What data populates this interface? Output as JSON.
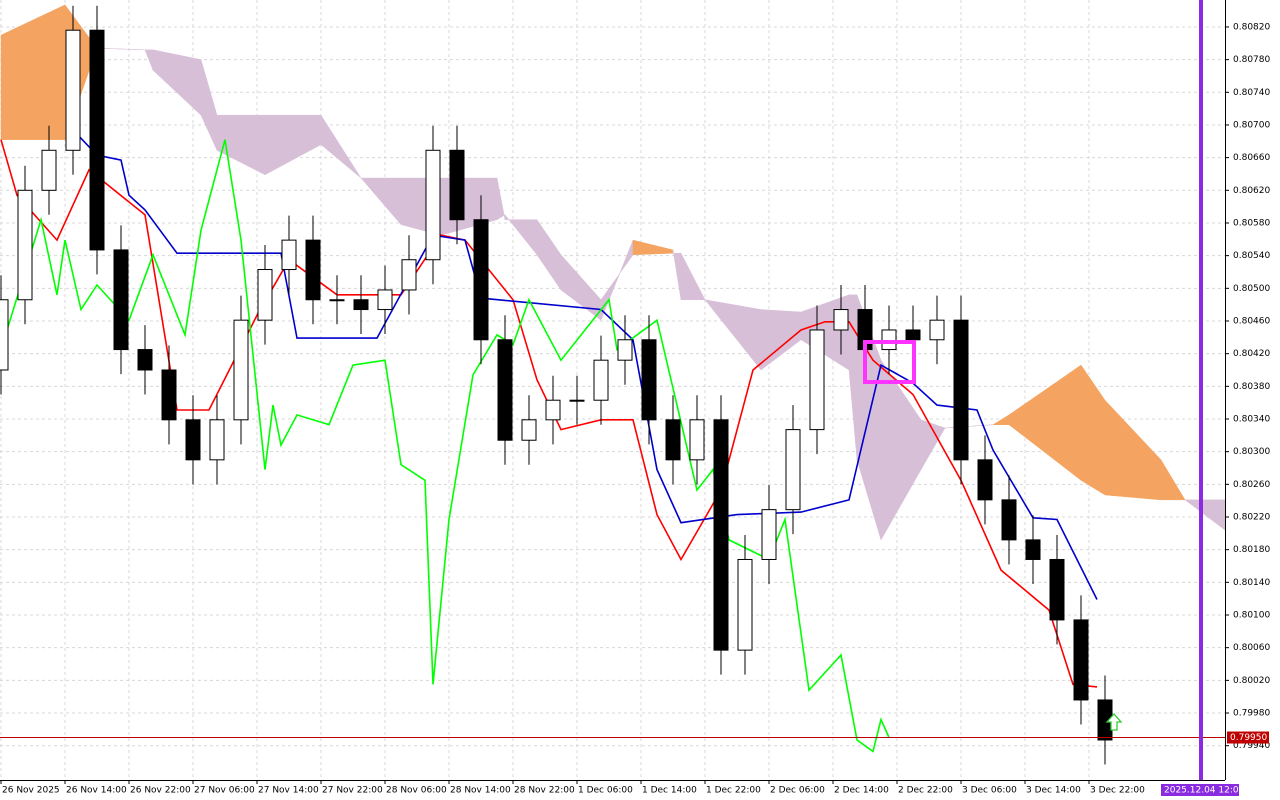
{
  "chart_data": {
    "type": "candlestick",
    "xlim": [
      -0.125,
      153
    ],
    "ylim": [
      0.79898,
      0.80853
    ],
    "grid": true,
    "yticks": [
      {
        "value": 0.8082,
        "label": "0.80820"
      },
      {
        "value": 0.8078,
        "label": "0.80780"
      },
      {
        "value": 0.8074,
        "label": "0.80740"
      },
      {
        "value": 0.807,
        "label": "0.80700"
      },
      {
        "value": 0.8066,
        "label": "0.80660"
      },
      {
        "value": 0.8062,
        "label": "0.80620"
      },
      {
        "value": 0.8058,
        "label": "0.80580"
      },
      {
        "value": 0.8054,
        "label": "0.80540"
      },
      {
        "value": 0.805,
        "label": "0.80500"
      },
      {
        "value": 0.8046,
        "label": "0.80460"
      },
      {
        "value": 0.8042,
        "label": "0.80420"
      },
      {
        "value": 0.8038,
        "label": "0.80380"
      },
      {
        "value": 0.8034,
        "label": "0.80340"
      },
      {
        "value": 0.803,
        "label": "0.80300"
      },
      {
        "value": 0.8026,
        "label": "0.80260"
      },
      {
        "value": 0.8022,
        "label": "0.80220"
      },
      {
        "value": 0.8018,
        "label": "0.80180"
      },
      {
        "value": 0.8014,
        "label": "0.80140"
      },
      {
        "value": 0.801,
        "label": "0.80100"
      },
      {
        "value": 0.8006,
        "label": "0.80060"
      },
      {
        "value": 0.8002,
        "label": "0.80020"
      },
      {
        "value": 0.7998,
        "label": "0.79980"
      },
      {
        "value": 0.7994,
        "label": "0.79940"
      }
    ],
    "xticks": [
      {
        "value": 0,
        "label": "26 Nov 2025"
      },
      {
        "value": 8,
        "label": "26 Nov 14:00"
      },
      {
        "value": 16,
        "label": "26 Nov 22:00"
      },
      {
        "value": 24,
        "label": "27 Nov 06:00"
      },
      {
        "value": 32,
        "label": "27 Nov 14:00"
      },
      {
        "value": 40,
        "label": "27 Nov 22:00"
      },
      {
        "value": 48,
        "label": "28 Nov 06:00"
      },
      {
        "value": 56,
        "label": "28 Nov 14:00"
      },
      {
        "value": 64,
        "label": "28 Nov 22:00"
      },
      {
        "value": 72,
        "label": "1 Dec 06:00"
      },
      {
        "value": 80,
        "label": "1 Dec 14:00"
      },
      {
        "value": 88,
        "label": "1 Dec 22:00"
      },
      {
        "value": 96,
        "label": "2 Dec 06:00"
      },
      {
        "value": 104,
        "label": "2 Dec 14:00"
      },
      {
        "value": 112,
        "label": "2 Dec 22:00"
      },
      {
        "value": 120,
        "label": "3 Dec 06:00"
      },
      {
        "value": 128,
        "label": "3 Dec 14:00"
      },
      {
        "value": 136,
        "label": "3 Dec 22:00"
      }
    ],
    "up_color": "#ffffff",
    "down_color": "#000000",
    "candles": {
      "x": [
        0,
        3,
        6,
        9,
        12,
        15,
        18,
        21,
        24,
        27,
        30,
        33,
        36,
        39,
        42,
        45,
        48,
        51,
        54,
        57,
        60,
        63,
        66,
        69,
        72,
        75,
        78,
        81,
        84,
        87,
        90,
        93,
        96,
        99,
        102,
        105,
        108,
        111,
        114,
        117,
        120,
        123,
        126,
        129,
        132,
        135,
        138
      ],
      "open": [
        0.804,
        0.80486,
        0.8062,
        0.80669,
        0.80816,
        0.80547,
        0.80425,
        0.804,
        0.80339,
        0.8029,
        0.80339,
        0.80461,
        0.80523,
        0.80559,
        0.80486,
        0.80486,
        0.80474,
        0.80498,
        0.80535,
        0.80669,
        0.80584,
        0.80437,
        0.80314,
        0.80339,
        0.80363,
        0.80363,
        0.80412,
        0.80437,
        0.80339,
        0.8029,
        0.80339,
        0.80057,
        0.80168,
        0.80229,
        0.80327,
        0.80449,
        0.80474,
        0.80425,
        0.80449,
        0.80437,
        0.80461,
        0.8029,
        0.80241,
        0.80192,
        0.80168,
        0.80094,
        0.79996
      ],
      "high": [
        0.80516,
        0.8065,
        0.80699,
        0.80846,
        0.80846,
        0.80577,
        0.80455,
        0.8043,
        0.80369,
        0.80369,
        0.80491,
        0.80553,
        0.80589,
        0.80589,
        0.80516,
        0.80516,
        0.80528,
        0.80565,
        0.80699,
        0.80699,
        0.80614,
        0.80467,
        0.80369,
        0.80393,
        0.80393,
        0.80442,
        0.80467,
        0.80467,
        0.80369,
        0.80369,
        0.80369,
        0.80198,
        0.80259,
        0.80357,
        0.80479,
        0.80504,
        0.80504,
        0.80479,
        0.80479,
        0.80491,
        0.80491,
        0.8032,
        0.80271,
        0.80222,
        0.80198,
        0.80124,
        0.80026
      ],
      "low": [
        0.8037,
        0.80456,
        0.8059,
        0.80639,
        0.80517,
        0.80395,
        0.8037,
        0.80309,
        0.8026,
        0.8026,
        0.80309,
        0.80431,
        0.80493,
        0.80456,
        0.80456,
        0.80444,
        0.80444,
        0.80468,
        0.80505,
        0.80554,
        0.80407,
        0.80284,
        0.80284,
        0.80309,
        0.80333,
        0.80333,
        0.80382,
        0.80309,
        0.8026,
        0.8026,
        0.80027,
        0.80027,
        0.80138,
        0.80199,
        0.80297,
        0.80419,
        0.80395,
        0.80395,
        0.80407,
        0.80407,
        0.8026,
        0.80211,
        0.80162,
        0.80138,
        0.80064,
        0.79966,
        0.79917
      ],
      "close": [
        0.80486,
        0.8062,
        0.80669,
        0.80816,
        0.80547,
        0.80425,
        0.804,
        0.80339,
        0.8029,
        0.80339,
        0.80461,
        0.80523,
        0.80559,
        0.80486,
        0.80486,
        0.80474,
        0.80498,
        0.80535,
        0.80669,
        0.80584,
        0.80437,
        0.80314,
        0.80339,
        0.80363,
        0.80363,
        0.80412,
        0.80437,
        0.80339,
        0.8029,
        0.80339,
        0.80057,
        0.80168,
        0.80229,
        0.80327,
        0.80449,
        0.80474,
        0.80425,
        0.80449,
        0.80437,
        0.80461,
        0.8029,
        0.80241,
        0.80192,
        0.80168,
        0.80094,
        0.79996,
        0.79947
      ]
    },
    "cloud": {
      "up_color": "#f4a460",
      "down_color": "#d8bfd8",
      "x": [
        0,
        8,
        12,
        18,
        19,
        25,
        27,
        33,
        40,
        45,
        50,
        55,
        62,
        63,
        67,
        70,
        75,
        79,
        84,
        85,
        88,
        95,
        100,
        106,
        107,
        110,
        115,
        118,
        124,
        126,
        135,
        138,
        145,
        148,
        153
      ],
      "span_a": [
        0.8081,
        0.80847,
        0.80794,
        0.80792,
        0.80767,
        0.80712,
        0.80669,
        0.80639,
        0.80676,
        0.80635,
        0.80578,
        0.80565,
        0.80584,
        0.8059,
        0.80541,
        0.80498,
        0.80461,
        0.80559,
        0.80547,
        0.80486,
        0.80486,
        0.804,
        0.80437,
        0.804,
        0.8029,
        0.80192,
        0.80278,
        0.80329,
        0.80333,
        0.80345,
        0.80406,
        0.80363,
        0.8029,
        0.80241,
        0.80204
      ],
      "span_b": [
        0.80682,
        0.80682,
        0.80794,
        0.80792,
        0.80792,
        0.8078,
        0.80712,
        0.80712,
        0.80712,
        0.80635,
        0.80635,
        0.80635,
        0.80635,
        0.80584,
        0.80584,
        0.80541,
        0.80486,
        0.80541,
        0.80543,
        0.80543,
        0.80486,
        0.80474,
        0.80471,
        0.80492,
        0.80492,
        0.80412,
        0.80339,
        0.80329,
        0.80333,
        0.80333,
        0.80265,
        0.80247,
        0.80241,
        0.80241,
        0.80241
      ]
    },
    "lines": [
      {
        "color": "#ff0000",
        "x": [
          0,
          2,
          7,
          11,
          18,
          22,
          26,
          32,
          36,
          42,
          50,
          55,
          58,
          64,
          67,
          70,
          75,
          79,
          82,
          85,
          90,
          94,
          100,
          103,
          106,
          109,
          114,
          120,
          125,
          131,
          134,
          137
        ],
        "values": [
          0.80682,
          0.80614,
          0.80559,
          0.80645,
          0.8059,
          0.80351,
          0.80351,
          0.80467,
          0.80535,
          0.80492,
          0.80492,
          0.80565,
          0.80559,
          0.80486,
          0.80388,
          0.80327,
          0.80339,
          0.80339,
          0.80223,
          0.80168,
          0.80253,
          0.804,
          0.80449,
          0.80459,
          0.80459,
          0.80412,
          0.8037,
          0.80265,
          0.80155,
          0.80106,
          0.80015,
          0.80012
        ]
      },
      {
        "color": "#0000cd",
        "x": [
          9,
          12,
          15,
          16,
          18,
          22,
          35,
          37,
          47,
          54,
          58,
          60,
          75,
          79,
          82,
          85,
          92,
          100,
          106,
          110,
          114,
          117,
          122,
          124,
          129,
          132,
          137
        ],
        "values": [
          0.80694,
          0.80663,
          0.80657,
          0.80614,
          0.80596,
          0.80543,
          0.80543,
          0.80439,
          0.80439,
          0.80565,
          0.80559,
          0.80488,
          0.80474,
          0.80437,
          0.80278,
          0.80213,
          0.80223,
          0.80226,
          0.80241,
          0.80406,
          0.80384,
          0.80357,
          0.80351,
          0.80302,
          0.80219,
          0.80217,
          0.80119
        ]
      },
      {
        "color": "#00ff00",
        "x": [
          0,
          5,
          7,
          8,
          10,
          12,
          16,
          19,
          23,
          25,
          28,
          30,
          33,
          34,
          35,
          37,
          41,
          44,
          48,
          50,
          53,
          54,
          56,
          59,
          62,
          64,
          66,
          70,
          73,
          76,
          77,
          82,
          87,
          89,
          91,
          96,
          98,
          101,
          105,
          107,
          109,
          110,
          111
        ],
        "values": [
          0.80425,
          0.80584,
          0.80492,
          0.80559,
          0.80474,
          0.80504,
          0.80461,
          0.80541,
          0.80443,
          0.80571,
          0.80682,
          0.80559,
          0.80278,
          0.80357,
          0.80308,
          0.80345,
          0.80333,
          0.80406,
          0.80412,
          0.80284,
          0.80265,
          0.80015,
          0.80217,
          0.80394,
          0.80443,
          0.80431,
          0.80486,
          0.80412,
          0.80449,
          0.80486,
          0.80425,
          0.80461,
          0.80253,
          0.80278,
          0.80192,
          0.80168,
          0.80217,
          0.80008,
          0.80051,
          0.79947,
          0.79933,
          0.79972,
          0.7995
        ]
      }
    ],
    "price_line": {
      "value": 0.7995,
      "label": "0.79950",
      "color": "#c00000"
    },
    "time_marker": {
      "x": 150,
      "label": "2025.12.04 12:00",
      "color": "#8a2be2"
    }
  }
}
